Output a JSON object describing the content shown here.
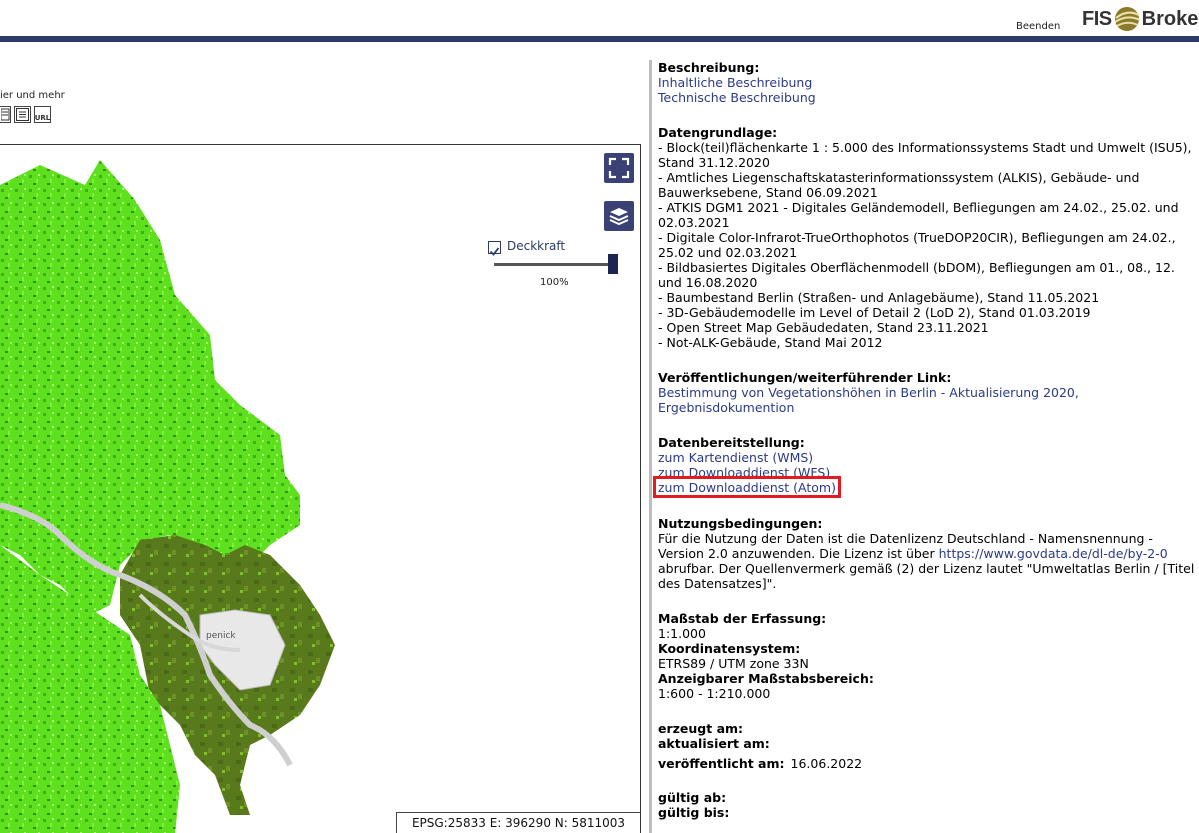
{
  "header": {
    "exit_label": "Beenden",
    "logo_part1": "FIS",
    "logo_part2": "Broker"
  },
  "map_toolbar": {
    "caption": "ier und mehr",
    "icons": [
      "doc-edit-icon",
      "list-icon",
      "url-icon"
    ],
    "url_label": "URL"
  },
  "map": {
    "fullscreen_icon": "fullscreen-icon",
    "layers_icon": "layers-icon",
    "opacity": {
      "checked": true,
      "label": "Deckkraft",
      "value_text": "100%",
      "value": 1.0
    },
    "place_label": "penick",
    "coords": "EPSG:25833 E: 396290 N: 5811003",
    "colors": {
      "bright": "#5fe01f",
      "mid": "#3cb01a",
      "dark": "#5b7d1e",
      "river": "#cfcfcf"
    }
  },
  "details": {
    "beschreibung": {
      "heading": "Beschreibung:",
      "links": [
        "Inhaltliche Beschreibung",
        "Technische Beschreibung"
      ]
    },
    "datengrundlage": {
      "heading": "Datengrundlage:",
      "items": [
        "- Block(teil)flächenkarte 1 : 5.000 des Informationssystems Stadt und Umwelt (ISU5), Stand 31.12.2020",
        "- Amtliches Liegenschaftskatasterinformationssystem (ALKIS), Gebäude- und Bauwerksebene, Stand 06.09.2021",
        "- ATKIS DGM1 2021 - Digitales Geländemodell, Befliegungen am 24.02., 25.02. und 02.03.2021",
        "- Digitale Color-Infrarot-TrueOrthophotos (TrueDOP20CIR), Befliegungen am 24.02., 25.02 und 02.03.2021",
        "- Bildbasiertes Digitales Oberflächenmodell (bDOM), Befliegungen am 01., 08., 12. und 16.08.2020",
        "- Baumbestand Berlin (Straßen- und Anlagebäume), Stand 11.05.2021",
        "- 3D-Gebäudemodelle im Level of Detail 2 (LoD 2), Stand 01.03.2019",
        "- Open Street Map Gebäudedaten, Stand 23.11.2021",
        "- Not-ALK-Gebäude, Stand Mai 2012"
      ]
    },
    "veroeffentlichungen": {
      "heading": "Veröffentlichungen/weiterführender Link:",
      "link": "Bestimmung von Vegetationshöhen in Berlin - Aktualisierung 2020, Ergebnisdokumention"
    },
    "datenbereitstellung": {
      "heading": "Datenbereitstellung:",
      "links": [
        "zum Kartendienst (WMS)",
        "zum Downloaddienst (WFS)",
        "zum Downloaddienst (Atom)"
      ],
      "highlight_color": "#e01b22"
    },
    "nutzungsbedingungen": {
      "heading": "Nutzungsbedingungen:",
      "text_before": "Für die Nutzung der Daten ist die Datenlizenz Deutschland - Namensnennung - Version 2.0 anzuwenden. Die Lizenz ist über ",
      "link": "https://www.govdata.de/dl-de/by-2-0",
      "text_after": " abrufbar. Der Quellenvermerk gemäß (2) der Lizenz lautet \"Umweltatlas Berlin / [Titel des Datensatzes]\"."
    },
    "massstab": {
      "heading": "Maßstab der Erfassung:",
      "value": "1:1.000"
    },
    "koordinatensystem": {
      "heading": "Koordinatensystem:",
      "value": "ETRS89 / UTM zone 33N"
    },
    "anzeigebereich": {
      "heading": "Anzeigbarer Maßstabsbereich:",
      "value": "1:600 - 1:210.000"
    },
    "erzeugt": {
      "label": "erzeugt am:",
      "value": ""
    },
    "aktualisiert": {
      "label": "aktualisiert am:",
      "value": ""
    },
    "veroeffentlicht": {
      "label": "veröffentlicht am:",
      "value": "16.06.2022"
    },
    "gueltig_ab": {
      "label": "gültig ab:",
      "value": ""
    },
    "gueltig_bis": {
      "label": "gültig bis:",
      "value": ""
    }
  }
}
